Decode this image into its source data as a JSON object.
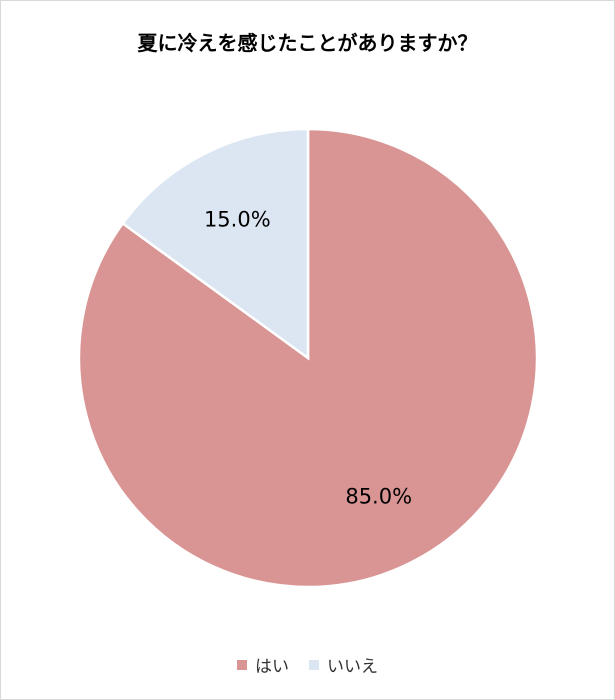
{
  "chart_data": {
    "type": "pie",
    "title": "夏に冷えを感じたことがありますか？",
    "categories": [
      "はい",
      "いいえ"
    ],
    "values": [
      85.0,
      15.0
    ],
    "data_labels": [
      "85.0%",
      "15.0%"
    ],
    "colors": [
      "#D99594",
      "#DCE6F2"
    ],
    "start_angle": "top, clockwise",
    "legend": "bottom"
  }
}
